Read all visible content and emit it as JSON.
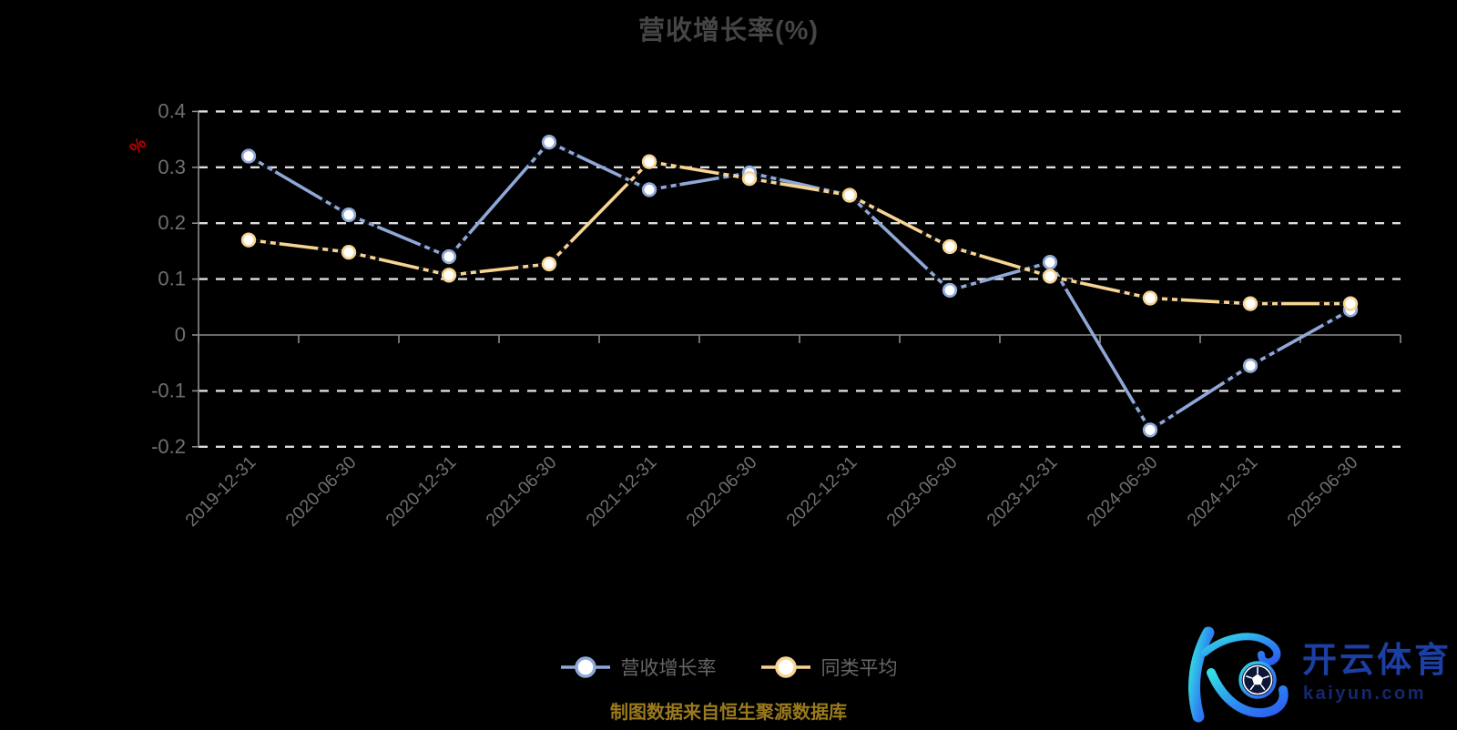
{
  "title": "营收增长率(%)",
  "source_note": "制图数据来自恒生聚源数据库",
  "watermark": {
    "monogram": "K",
    "brand": "开云体育",
    "domain": "kaiyun.com"
  },
  "colors": {
    "background": "#000000",
    "title": "#454545",
    "axis_label": "#6f6f6f",
    "axis_line": "#8c8c8c",
    "gridline": "#dedede",
    "series_blue": "#8fa8d8",
    "series_yellow": "#f8d492",
    "marker_fill": "#ffffff",
    "line_dark_dash": "#06080d",
    "unit_label": "#c00000",
    "legend_text": "#666666",
    "source_text": "#9a7a1c",
    "brand_blue": "#1c3fa5",
    "domain_blue": "#14286e"
  },
  "chart_data": {
    "type": "line",
    "title": "营收增长率(%)",
    "xlabel": "",
    "ylabel": "%",
    "ylim": [
      -0.2,
      0.4
    ],
    "yticks": [
      0.4,
      0.3,
      0.2,
      0.1,
      0,
      -0.1,
      -0.2
    ],
    "grid": true,
    "gridline_style": "dashed",
    "legend_position": "bottom",
    "categories": [
      "2019-12-31",
      "2020-06-30",
      "2020-12-31",
      "2021-06-30",
      "2021-12-31",
      "2022-06-30",
      "2022-12-31",
      "2023-06-30",
      "2023-12-31",
      "2024-06-30",
      "2024-12-31",
      "2025-06-30"
    ],
    "series": [
      {
        "name": "营收增长率",
        "color": "#8fa8d8",
        "values": [
          0.32,
          0.215,
          0.14,
          0.345,
          0.26,
          0.29,
          0.25,
          0.08,
          0.13,
          -0.17,
          -0.055,
          0.045
        ]
      },
      {
        "name": "同类平均",
        "color": "#f8d492",
        "values": [
          0.17,
          0.148,
          0.107,
          0.127,
          0.31,
          0.28,
          0.25,
          0.158,
          0.105,
          0.066,
          0.056,
          0.056
        ]
      }
    ]
  }
}
